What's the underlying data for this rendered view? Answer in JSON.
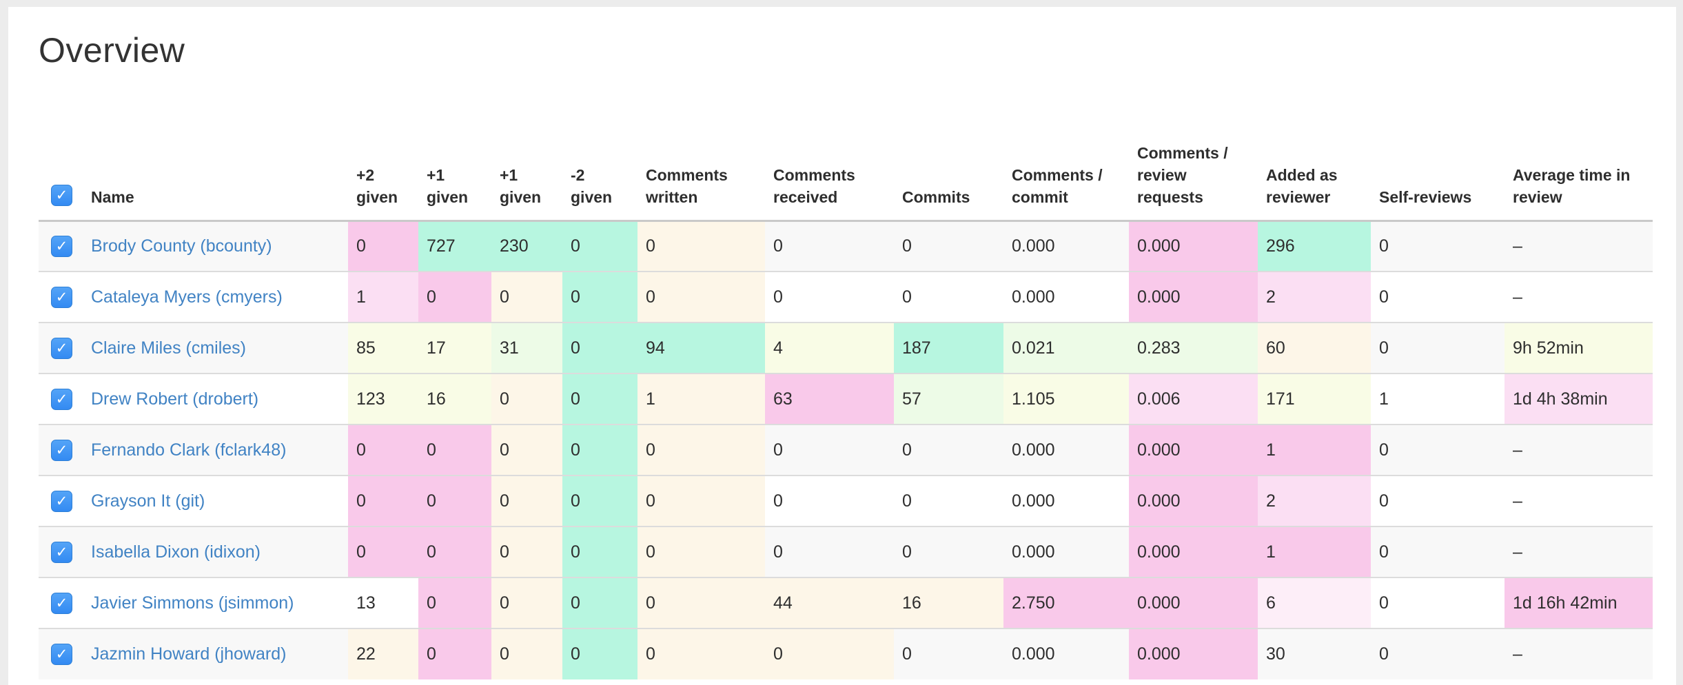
{
  "page": {
    "title": "Overview"
  },
  "palette": {
    "pink2": "#f9c9ea",
    "pink1": "#fbdff3",
    "pink0": "#fdeef8",
    "teal": "#b7f6e0",
    "cream": "#fdf6e8",
    "yellow": "#f9fce6",
    "green": "#edfbe7",
    "link_blue": "#4183c4",
    "checkbox_blue": "#3e97f5"
  },
  "table": {
    "name_header": "Name",
    "select_all_checked": true,
    "columns": [
      {
        "label": "+2 given"
      },
      {
        "label": "+1 given"
      },
      {
        "label": "+1 given"
      },
      {
        "label": "-2 given"
      },
      {
        "label": "Comments written"
      },
      {
        "label": "Comments received"
      },
      {
        "label": "Commits"
      },
      {
        "label": "Comments / commit"
      },
      {
        "label": "Comments / review requests"
      },
      {
        "label": "Added as reviewer"
      },
      {
        "label": "Self-reviews"
      },
      {
        "label": "Average time in review"
      }
    ],
    "rows": [
      {
        "name": "Brody County (bcounty)",
        "checked": true,
        "values": [
          "0",
          "727",
          "230",
          "0",
          "0",
          "0",
          "0",
          "0.000",
          "0.000",
          "296",
          "0",
          "–"
        ],
        "colors": [
          "pink2",
          "teal",
          "teal",
          "teal",
          "cream",
          "",
          "",
          "",
          "pink2",
          "teal",
          "",
          ""
        ]
      },
      {
        "name": "Cataleya Myers (cmyers)",
        "checked": true,
        "values": [
          "1",
          "0",
          "0",
          "0",
          "0",
          "0",
          "0",
          "0.000",
          "0.000",
          "2",
          "0",
          "–"
        ],
        "colors": [
          "pink1",
          "pink2",
          "cream",
          "teal",
          "cream",
          "",
          "",
          "",
          "pink2",
          "pink1",
          "",
          ""
        ]
      },
      {
        "name": "Claire Miles (cmiles)",
        "checked": true,
        "values": [
          "85",
          "17",
          "31",
          "0",
          "94",
          "4",
          "187",
          "0.021",
          "0.283",
          "60",
          "0",
          "9h 52min"
        ],
        "colors": [
          "yellow",
          "yellow",
          "green",
          "teal",
          "teal",
          "yellow",
          "teal",
          "green",
          "green",
          "cream",
          "",
          "yellow"
        ]
      },
      {
        "name": "Drew Robert (drobert)",
        "checked": true,
        "values": [
          "123",
          "16",
          "0",
          "0",
          "1",
          "63",
          "57",
          "1.105",
          "0.006",
          "171",
          "1",
          "1d 4h 38min"
        ],
        "colors": [
          "yellow",
          "yellow",
          "cream",
          "teal",
          "cream",
          "pink2",
          "green",
          "yellow",
          "pink1",
          "yellow",
          "",
          "pink1"
        ]
      },
      {
        "name": "Fernando Clark (fclark48)",
        "checked": true,
        "values": [
          "0",
          "0",
          "0",
          "0",
          "0",
          "0",
          "0",
          "0.000",
          "0.000",
          "1",
          "0",
          "–"
        ],
        "colors": [
          "pink2",
          "pink2",
          "cream",
          "teal",
          "cream",
          "",
          "",
          "",
          "pink2",
          "pink2",
          "",
          ""
        ]
      },
      {
        "name": "Grayson It (git)",
        "checked": true,
        "values": [
          "0",
          "0",
          "0",
          "0",
          "0",
          "0",
          "0",
          "0.000",
          "0.000",
          "2",
          "0",
          "–"
        ],
        "colors": [
          "pink2",
          "pink2",
          "cream",
          "teal",
          "cream",
          "",
          "",
          "",
          "pink2",
          "pink1",
          "",
          ""
        ]
      },
      {
        "name": "Isabella Dixon (idixon)",
        "checked": true,
        "values": [
          "0",
          "0",
          "0",
          "0",
          "0",
          "0",
          "0",
          "0.000",
          "0.000",
          "1",
          "0",
          "–"
        ],
        "colors": [
          "pink2",
          "pink2",
          "cream",
          "teal",
          "cream",
          "",
          "",
          "",
          "pink2",
          "pink2",
          "",
          ""
        ]
      },
      {
        "name": "Javier Simmons (jsimmon)",
        "checked": true,
        "values": [
          "13",
          "0",
          "0",
          "0",
          "0",
          "44",
          "16",
          "2.750",
          "0.000",
          "6",
          "0",
          "1d 16h 42min"
        ],
        "colors": [
          "",
          "pink2",
          "cream",
          "teal",
          "cream",
          "cream",
          "cream",
          "pink2",
          "pink2",
          "pink0",
          "",
          "pink2"
        ]
      },
      {
        "name": "Jazmin Howard (jhoward)",
        "checked": true,
        "values": [
          "22",
          "0",
          "0",
          "0",
          "0",
          "0",
          "0",
          "0.000",
          "0.000",
          "30",
          "0",
          "–"
        ],
        "colors": [
          "cream",
          "pink2",
          "cream",
          "teal",
          "cream",
          "cream",
          "",
          "",
          "pink2",
          "",
          "",
          ""
        ]
      }
    ]
  }
}
